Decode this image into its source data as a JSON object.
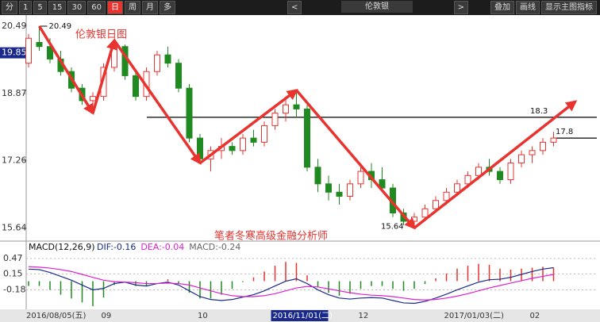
{
  "toolbar": {
    "periods": [
      "分",
      "1",
      "5",
      "15",
      "30",
      "60",
      "日",
      "周",
      "月",
      "多"
    ],
    "active_index": 6,
    "prev": "<",
    "symbol": "伦敦银",
    "next": ">",
    "tools": [
      "叠加",
      "画线",
      "显示主图指标"
    ]
  },
  "chart_data": [
    {
      "type": "candlestick",
      "title": "伦敦银日图",
      "footnote": "笔者冬寒高级金融分析师",
      "categories": [
        "2016/08/05(五)",
        null,
        null,
        null,
        null,
        null,
        null,
        "09",
        null,
        null,
        null,
        null,
        null,
        null,
        null,
        null,
        "10",
        null,
        null,
        null,
        null,
        null,
        null,
        "2016/11/01(二)",
        null,
        null,
        null,
        null,
        null,
        null,
        null,
        "12",
        null,
        null,
        null,
        null,
        null,
        null,
        null,
        "2017/01/03(二)",
        null,
        null,
        null,
        null,
        null,
        null,
        null,
        "02",
        null,
        null
      ],
      "open": [
        19.6,
        20.1,
        20.0,
        19.7,
        19.4,
        19.0,
        18.7,
        18.8,
        19.5,
        20.0,
        19.3,
        18.8,
        19.4,
        19.8,
        19.6,
        19.0,
        17.8,
        17.3,
        17.5,
        17.6,
        17.5,
        17.8,
        17.7,
        18.1,
        18.4,
        18.6,
        18.5,
        17.1,
        16.7,
        16.5,
        16.4,
        16.7,
        17.0,
        16.8,
        16.6,
        16.0,
        15.8,
        15.9,
        16.1,
        16.3,
        16.5,
        16.7,
        16.9,
        17.1,
        17.0,
        16.8,
        17.2,
        17.4,
        17.5,
        17.7
      ],
      "high": [
        20.3,
        20.49,
        20.2,
        19.9,
        19.5,
        19.1,
        18.9,
        19.6,
        20.15,
        20.05,
        19.4,
        19.5,
        19.9,
        20.0,
        19.7,
        19.1,
        17.9,
        17.6,
        17.8,
        17.7,
        17.9,
        18.0,
        18.2,
        18.5,
        18.8,
        18.95,
        18.6,
        17.3,
        16.9,
        16.7,
        16.8,
        17.2,
        17.2,
        17.1,
        16.7,
        16.1,
        16.0,
        16.2,
        16.4,
        16.6,
        16.8,
        17.0,
        17.2,
        17.3,
        17.1,
        17.3,
        17.5,
        17.6,
        17.8,
        17.95
      ],
      "low": [
        19.5,
        19.9,
        19.6,
        19.3,
        18.9,
        18.6,
        18.4,
        18.7,
        19.4,
        19.2,
        18.7,
        18.7,
        19.3,
        19.5,
        18.9,
        17.7,
        17.2,
        17.0,
        17.3,
        17.4,
        17.4,
        17.6,
        17.6,
        18.0,
        18.2,
        18.3,
        17.0,
        16.5,
        16.3,
        16.2,
        16.3,
        16.6,
        16.6,
        16.5,
        15.9,
        15.7,
        15.64,
        15.8,
        16.0,
        16.2,
        16.4,
        16.6,
        16.8,
        16.9,
        16.7,
        16.7,
        17.1,
        17.2,
        17.4,
        17.6
      ],
      "close": [
        20.2,
        20.0,
        19.7,
        19.4,
        19.0,
        18.7,
        18.8,
        19.5,
        20.0,
        19.3,
        18.8,
        19.4,
        19.8,
        19.6,
        19.0,
        17.8,
        17.3,
        17.5,
        17.6,
        17.5,
        17.8,
        17.7,
        18.1,
        18.4,
        18.6,
        18.5,
        17.1,
        16.7,
        16.5,
        16.4,
        16.7,
        17.0,
        16.8,
        16.6,
        16.0,
        15.8,
        15.9,
        16.1,
        16.3,
        16.5,
        16.7,
        16.9,
        17.1,
        17.0,
        16.8,
        17.2,
        17.4,
        17.5,
        17.7,
        17.8
      ],
      "up_color": "#e8332f",
      "down_color": "#1f8a1f",
      "ylim": [
        15.4,
        20.7
      ],
      "yticks": [
        20.49,
        18.87,
        17.26,
        15.64
      ],
      "cursor_value": 19.85,
      "levels": [
        18.3,
        17.8
      ]
    },
    {
      "type": "macd",
      "title": "MACD(12,26,9)",
      "series": [
        {
          "label": "DIF:-0.16",
          "color": "#1a2a8c",
          "values": [
            0.25,
            0.24,
            0.18,
            0.1,
            0.02,
            -0.08,
            -0.18,
            -0.15,
            -0.05,
            -0.02,
            -0.08,
            -0.1,
            -0.05,
            -0.02,
            -0.08,
            -0.2,
            -0.32,
            -0.38,
            -0.4,
            -0.38,
            -0.33,
            -0.28,
            -0.2,
            -0.1,
            0.0,
            0.05,
            -0.05,
            -0.18,
            -0.28,
            -0.35,
            -0.37,
            -0.35,
            -0.34,
            -0.35,
            -0.4,
            -0.45,
            -0.46,
            -0.42,
            -0.35,
            -0.27,
            -0.18,
            -0.1,
            -0.02,
            0.03,
            0.04,
            0.08,
            0.14,
            0.2,
            0.25,
            0.28
          ]
        },
        {
          "label": "DEA:-0.04",
          "color": "#e020d0",
          "values": [
            0.3,
            0.29,
            0.27,
            0.24,
            0.2,
            0.14,
            0.08,
            0.02,
            -0.01,
            -0.02,
            -0.03,
            -0.05,
            -0.05,
            -0.04,
            -0.05,
            -0.08,
            -0.14,
            -0.2,
            -0.26,
            -0.3,
            -0.32,
            -0.32,
            -0.3,
            -0.26,
            -0.2,
            -0.14,
            -0.11,
            -0.12,
            -0.16,
            -0.2,
            -0.24,
            -0.27,
            -0.29,
            -0.3,
            -0.32,
            -0.35,
            -0.38,
            -0.39,
            -0.38,
            -0.35,
            -0.31,
            -0.26,
            -0.2,
            -0.14,
            -0.09,
            -0.04,
            0.01,
            0.06,
            0.1,
            0.14
          ]
        }
      ],
      "histogram": {
        "label": "MACD:-0.24",
        "color": "#666666",
        "values": [
          -0.1,
          -0.1,
          -0.18,
          -0.28,
          -0.36,
          -0.44,
          -0.52,
          -0.34,
          -0.08,
          0.0,
          -0.1,
          -0.1,
          0.0,
          0.04,
          -0.06,
          -0.24,
          -0.36,
          -0.36,
          -0.28,
          -0.16,
          -0.02,
          0.08,
          0.2,
          0.32,
          0.4,
          0.38,
          0.12,
          -0.12,
          -0.24,
          -0.3,
          -0.26,
          -0.16,
          -0.1,
          -0.1,
          -0.16,
          -0.2,
          -0.16,
          -0.06,
          0.06,
          0.16,
          0.26,
          0.32,
          0.36,
          0.34,
          0.26,
          0.24,
          0.26,
          0.28,
          0.3,
          0.28
        ]
      },
      "ylim": [
        -0.55,
        0.6
      ],
      "yticks": [
        0.47,
        0.15,
        -0.18
      ],
      "grid": true
    }
  ]
}
